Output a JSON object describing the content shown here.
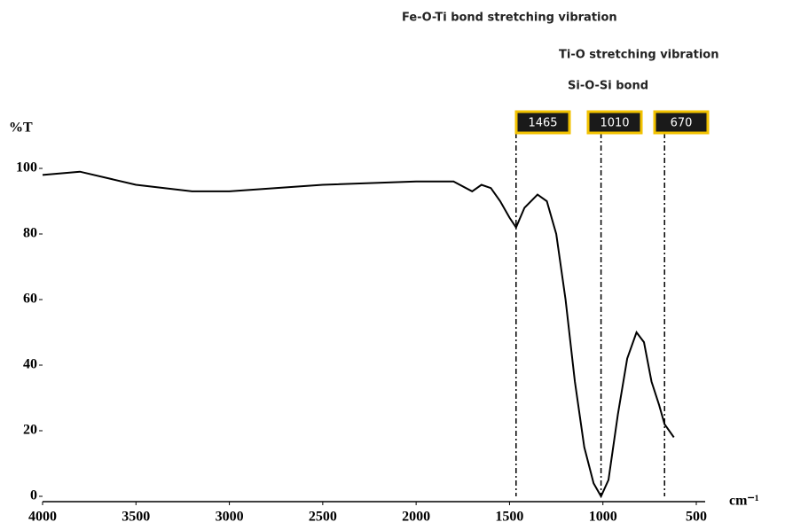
{
  "chart_data": {
    "type": "line",
    "y_label": "%T",
    "x_label": "cm⁻¹",
    "x": [
      4000,
      3800,
      3500,
      3200,
      3000,
      2500,
      2000,
      1800,
      1700,
      1650,
      1600,
      1550,
      1500,
      1465,
      1420,
      1350,
      1300,
      1250,
      1200,
      1150,
      1100,
      1050,
      1010,
      970,
      920,
      870,
      820,
      780,
      740,
      700,
      670,
      620
    ],
    "values": [
      98,
      99,
      95,
      93,
      93,
      95,
      96,
      96,
      93,
      95,
      94,
      90,
      85,
      82,
      88,
      92,
      90,
      80,
      60,
      35,
      15,
      4,
      0,
      5,
      25,
      42,
      50,
      47,
      35,
      28,
      22,
      18
    ],
    "color": "#000000",
    "xlim": [
      4000,
      500
    ],
    "xticks": [
      4000,
      3500,
      3000,
      2500,
      2000,
      1500,
      1000,
      500
    ],
    "ylim": [
      0,
      100
    ],
    "yticks": [
      0,
      20,
      40,
      60,
      80,
      100
    ],
    "peak_markers": [
      1465,
      1010,
      670
    ],
    "annotations": [
      "Fe-O-Ti bond stretching vibration",
      "Ti-O stretching vibration",
      "Si-O-Si bond"
    ]
  }
}
